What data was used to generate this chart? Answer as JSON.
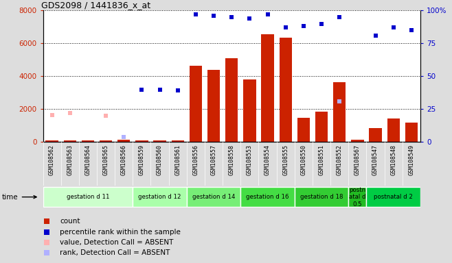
{
  "title": "GDS2098 / 1441836_x_at",
  "samples": [
    "GSM108562",
    "GSM108563",
    "GSM108564",
    "GSM108565",
    "GSM108566",
    "GSM108559",
    "GSM108560",
    "GSM108561",
    "GSM108556",
    "GSM108557",
    "GSM108558",
    "GSM108553",
    "GSM108554",
    "GSM108555",
    "GSM108550",
    "GSM108551",
    "GSM108552",
    "GSM108567",
    "GSM108547",
    "GSM108548",
    "GSM108549"
  ],
  "counts": [
    80,
    100,
    80,
    80,
    120,
    90,
    80,
    100,
    4620,
    4380,
    5100,
    3800,
    6550,
    6350,
    1480,
    1850,
    3620,
    120,
    840,
    1430,
    1180
  ],
  "ranks_pct": [
    null,
    null,
    null,
    null,
    null,
    40,
    40,
    39,
    97,
    96,
    95,
    94,
    97,
    87,
    88,
    90,
    95,
    null,
    81,
    87,
    85
  ],
  "absent_values": [
    1620,
    1780,
    null,
    1600,
    null,
    null,
    null,
    null,
    null,
    null,
    null,
    null,
    null,
    null,
    null,
    null,
    null,
    null,
    null,
    null,
    null
  ],
  "absent_ranks_pct": [
    null,
    null,
    null,
    null,
    4,
    null,
    null,
    null,
    null,
    null,
    null,
    null,
    null,
    null,
    null,
    null,
    31,
    null,
    null,
    null,
    null
  ],
  "groups": [
    {
      "label": "gestation d 11",
      "start": 0,
      "end": 4,
      "color": "#ccffcc"
    },
    {
      "label": "gestation d 12",
      "start": 5,
      "end": 7,
      "color": "#aaffaa"
    },
    {
      "label": "gestation d 14",
      "start": 8,
      "end": 10,
      "color": "#77ee77"
    },
    {
      "label": "gestation d 16",
      "start": 11,
      "end": 13,
      "color": "#44dd44"
    },
    {
      "label": "gestation d 18",
      "start": 14,
      "end": 16,
      "color": "#33cc33"
    },
    {
      "label": "postn\natal d\n0.5",
      "start": 17,
      "end": 17,
      "color": "#22bb22"
    },
    {
      "label": "postnatal d 2",
      "start": 18,
      "end": 20,
      "color": "#00cc44"
    }
  ],
  "bar_color": "#cc2200",
  "rank_color": "#0000cc",
  "absent_val_color": "#ffb0b0",
  "absent_rank_color": "#b0b0ff",
  "ylim_left": [
    0,
    8000
  ],
  "ylim_right": [
    0,
    100
  ],
  "yticks_left": [
    0,
    2000,
    4000,
    6000,
    8000
  ],
  "yticks_right": [
    0,
    25,
    50,
    75,
    100
  ],
  "ytick_labels_right": [
    "0",
    "25",
    "50",
    "75",
    "100%"
  ],
  "background_color": "#dddddd",
  "plot_bg_color": "#ffffff",
  "tick_area_color": "#cccccc"
}
